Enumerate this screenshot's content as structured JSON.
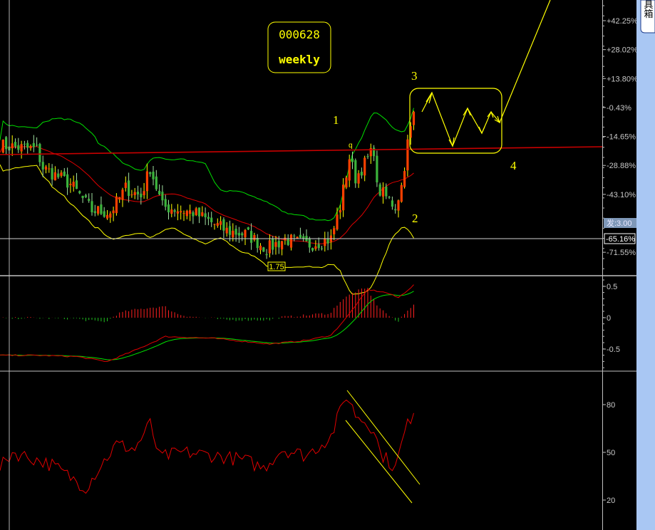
{
  "toolbox_tab": {
    "label": "工具箱"
  },
  "chart_data": [
    {
      "type": "candlestick",
      "panel": "price",
      "title_box": {
        "code": "000628",
        "period": "weekly"
      },
      "y_axis_ticks": [
        "+42.25%",
        "+28.02%",
        "+13.80%",
        "-0.43%",
        "-14.65%",
        "-28.88%",
        "-43.10%",
        "-71.55%"
      ],
      "y_tick_values": [
        42.25,
        28.02,
        13.8,
        -0.43,
        -14.65,
        -28.88,
        -43.1,
        -71.55
      ],
      "ylim": [
        -78,
        52
      ],
      "badge_label": "发:3.00",
      "cursor_value_label": "-65.16%",
      "low_marker_label": "1.75",
      "close_keypoints_week_pct": [
        [
          0,
          -19
        ],
        [
          12,
          -21
        ],
        [
          14,
          -30
        ],
        [
          23,
          -38
        ],
        [
          30,
          -51
        ],
        [
          36,
          -52
        ],
        [
          41,
          -40
        ],
        [
          46,
          -44
        ],
        [
          49,
          -30
        ],
        [
          53,
          -49
        ],
        [
          63,
          -52
        ],
        [
          74,
          -61
        ],
        [
          81,
          -63
        ],
        [
          87,
          -70
        ],
        [
          93,
          -65
        ],
        [
          100,
          -68
        ],
        [
          108,
          -65
        ],
        [
          111,
          -49
        ],
        [
          114,
          -25
        ],
        [
          116,
          -35
        ],
        [
          122,
          -21
        ],
        [
          123,
          -40
        ],
        [
          129,
          -49
        ],
        [
          131,
          -39
        ],
        [
          133,
          -18
        ],
        [
          135,
          -4
        ]
      ],
      "overlays": [
        "Bollinger upper (green)",
        "Bollinger mid (red)",
        "Bollinger lower (yellow)"
      ],
      "annotations": {
        "wave_1": "1",
        "wave_2": "2",
        "wave_3": "3",
        "wave_4": "4",
        "peak_mark": "q"
      },
      "colors": {
        "up": "#ff4000",
        "down": "#3cb43c",
        "upper": "#00e000",
        "mid": "#e00000",
        "lower": "#ffff00",
        "trendline": "#d00000",
        "annotation": "#ffff00"
      }
    },
    {
      "type": "line",
      "panel": "macd",
      "y_axis_ticks": [
        "0.5",
        "0",
        "-0.5"
      ],
      "y_tick_values": [
        0.5,
        0,
        -0.5
      ],
      "ylim": [
        -0.85,
        0.62
      ],
      "dif_keypoints_week_value": [
        [
          0,
          -0.6
        ],
        [
          12,
          -0.6
        ],
        [
          25,
          -0.62
        ],
        [
          35,
          -0.7
        ],
        [
          45,
          -0.5
        ],
        [
          54,
          -0.3
        ],
        [
          70,
          -0.33
        ],
        [
          88,
          -0.42
        ],
        [
          100,
          -0.36
        ],
        [
          108,
          -0.28
        ],
        [
          113,
          0.0
        ],
        [
          120,
          0.45
        ],
        [
          126,
          0.4
        ],
        [
          130,
          0.32
        ],
        [
          135,
          0.52
        ]
      ],
      "colors": {
        "dif": "#e00000",
        "dea": "#00e000",
        "hist_pos": "#ff2020",
        "hist_neg": "#20c020"
      }
    },
    {
      "type": "line",
      "panel": "rsi",
      "y_axis_ticks": [
        "80",
        "50",
        "20"
      ],
      "y_tick_values": [
        80,
        50,
        20
      ],
      "ylim": [
        12,
        92
      ],
      "keypoints_week_value": [
        [
          0,
          40
        ],
        [
          4,
          50
        ],
        [
          11,
          46
        ],
        [
          17,
          42
        ],
        [
          28,
          28
        ],
        [
          33,
          42
        ],
        [
          38,
          55
        ],
        [
          44,
          52
        ],
        [
          49,
          68
        ],
        [
          52,
          47
        ],
        [
          60,
          50
        ],
        [
          70,
          48
        ],
        [
          80,
          45
        ],
        [
          86,
          40
        ],
        [
          92,
          52
        ],
        [
          100,
          48
        ],
        [
          108,
          60
        ],
        [
          113,
          86
        ],
        [
          116,
          74
        ],
        [
          122,
          65
        ],
        [
          124,
          50
        ],
        [
          129,
          40
        ],
        [
          132,
          62
        ],
        [
          135,
          77
        ]
      ],
      "color": "#e00000",
      "channel_color": "#ffff00"
    }
  ]
}
